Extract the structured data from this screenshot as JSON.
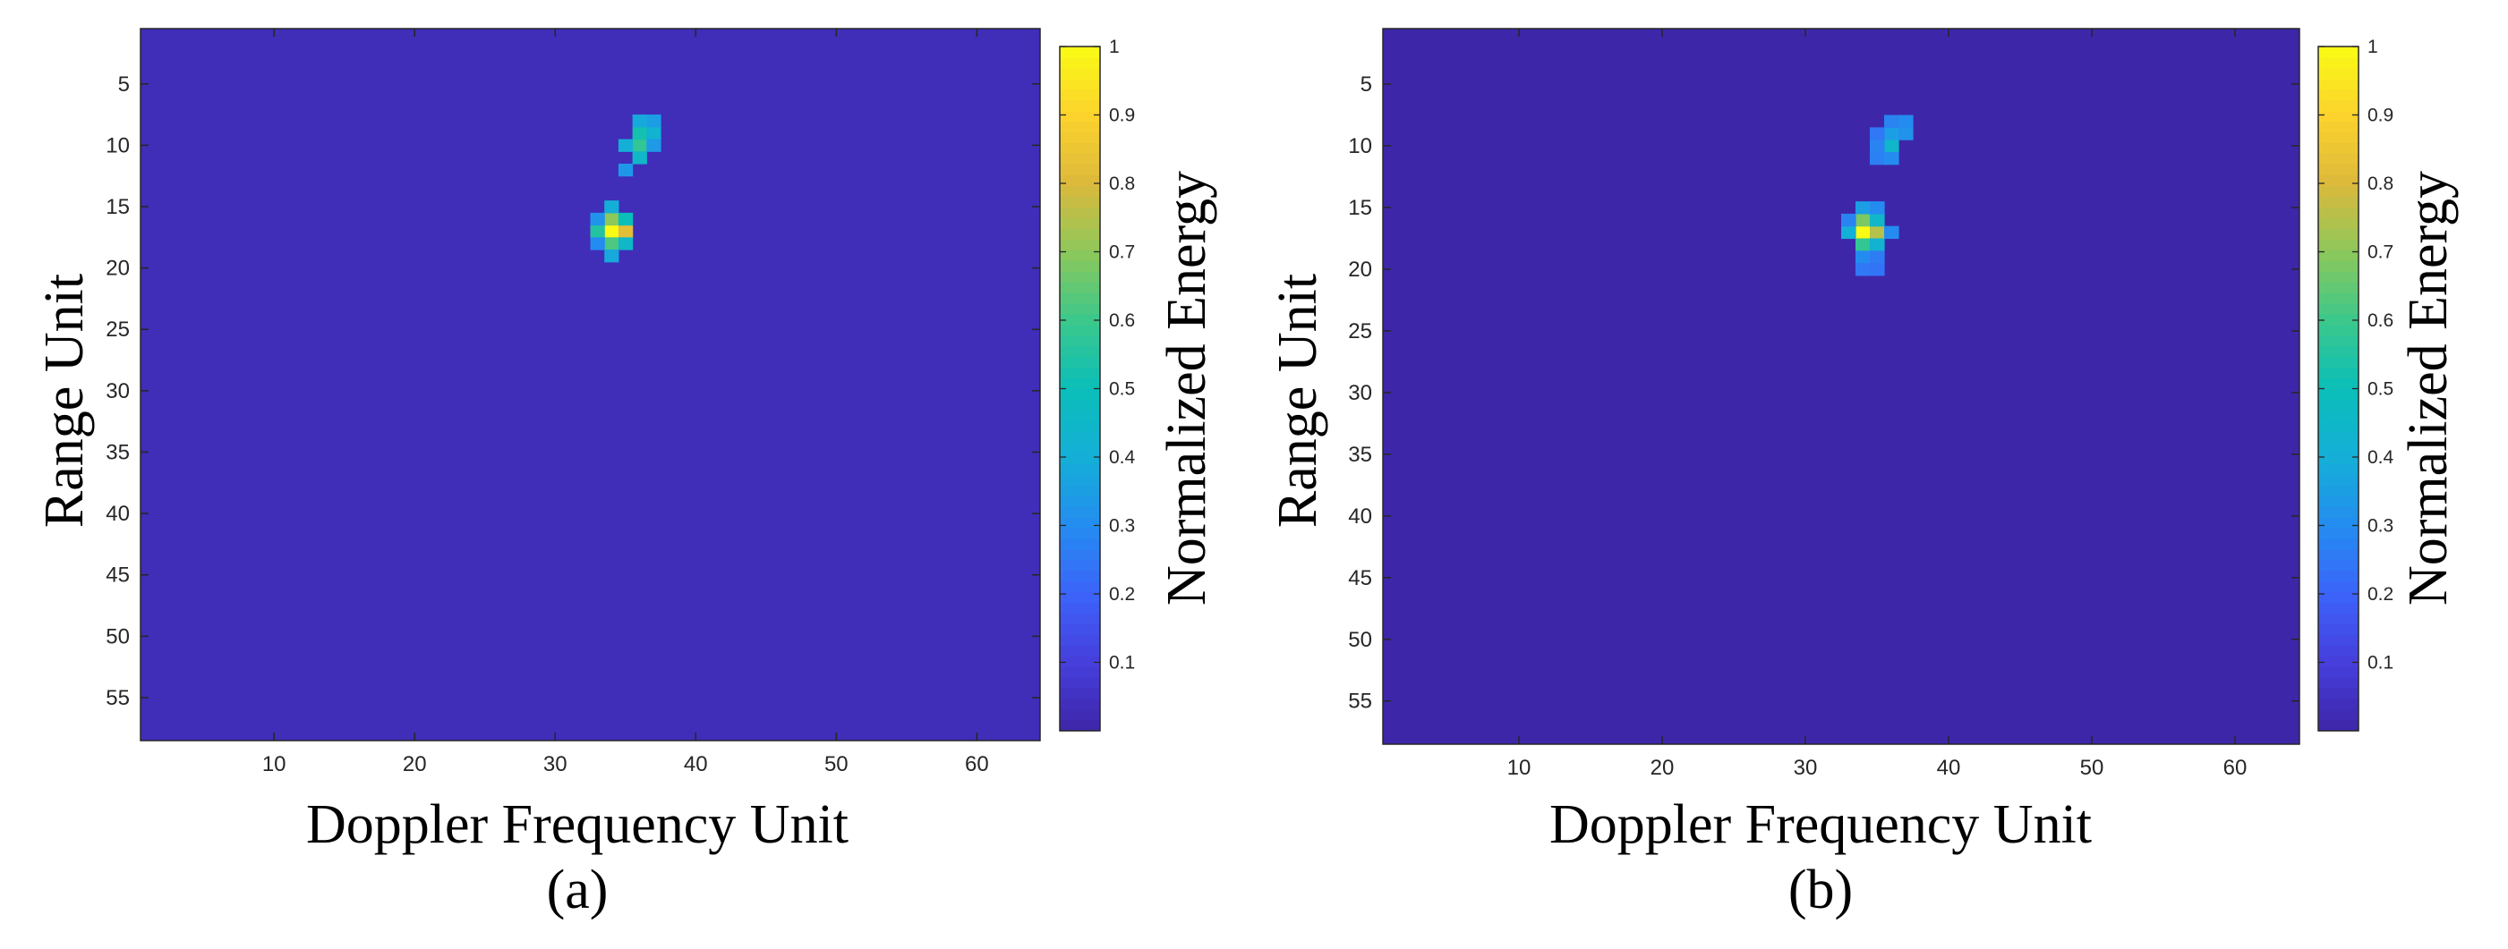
{
  "colors": {
    "background": "#3e26a8",
    "colormap": "parula"
  },
  "chart_data": [
    {
      "type": "heatmap",
      "caption": "(a)",
      "xlabel": "Doppler Frequency Unit",
      "ylabel": "Range Unit",
      "colorbar_label": "Normalized Energy",
      "xlim": [
        0.5,
        64.5
      ],
      "ylim": [
        0.5,
        58.5
      ],
      "y_reversed": true,
      "x_ticks": [
        10,
        20,
        30,
        40,
        50,
        60
      ],
      "y_ticks": [
        5,
        10,
        15,
        20,
        25,
        30,
        35,
        40,
        45,
        50,
        55
      ],
      "colorbar_range": [
        0,
        1
      ],
      "colorbar_ticks": [
        0.1,
        0.2,
        0.3,
        0.4,
        0.5,
        0.6,
        0.7,
        0.8,
        0.9,
        1
      ],
      "background_value": 0.03,
      "hotspots": [
        {
          "x": 34,
          "y": 17,
          "value": 1.0
        },
        {
          "x": 35,
          "y": 17,
          "value": 0.82
        },
        {
          "x": 33,
          "y": 17,
          "value": 0.55
        },
        {
          "x": 34,
          "y": 16,
          "value": 0.7
        },
        {
          "x": 34,
          "y": 18,
          "value": 0.62
        },
        {
          "x": 35,
          "y": 16,
          "value": 0.5
        },
        {
          "x": 34,
          "y": 15,
          "value": 0.4
        },
        {
          "x": 35,
          "y": 18,
          "value": 0.45
        },
        {
          "x": 34,
          "y": 19,
          "value": 0.38
        },
        {
          "x": 33,
          "y": 16,
          "value": 0.32
        },
        {
          "x": 33,
          "y": 18,
          "value": 0.3
        },
        {
          "x": 36,
          "y": 10,
          "value": 0.58
        },
        {
          "x": 36,
          "y": 9,
          "value": 0.52
        },
        {
          "x": 37,
          "y": 9,
          "value": 0.42
        },
        {
          "x": 36,
          "y": 11,
          "value": 0.45
        },
        {
          "x": 35,
          "y": 10,
          "value": 0.4
        },
        {
          "x": 37,
          "y": 8,
          "value": 0.35
        },
        {
          "x": 36,
          "y": 8,
          "value": 0.38
        },
        {
          "x": 35,
          "y": 12,
          "value": 0.33
        },
        {
          "x": 37,
          "y": 10,
          "value": 0.34
        }
      ]
    },
    {
      "type": "heatmap",
      "caption": "(b)",
      "xlabel": "Doppler Frequency Unit",
      "ylabel": "Range Unit",
      "colorbar_label": "Normalized Energy",
      "xlim": [
        0.5,
        64.5
      ],
      "ylim": [
        0.5,
        58.5
      ],
      "y_reversed": true,
      "x_ticks": [
        10,
        20,
        30,
        40,
        50,
        60
      ],
      "y_ticks": [
        5,
        10,
        15,
        20,
        25,
        30,
        35,
        40,
        45,
        50,
        55
      ],
      "colorbar_range": [
        0,
        1
      ],
      "colorbar_ticks": [
        0.1,
        0.2,
        0.3,
        0.4,
        0.5,
        0.6,
        0.7,
        0.8,
        0.9,
        1
      ],
      "background_value": 0.0,
      "hotspots": [
        {
          "x": 34,
          "y": 17,
          "value": 1.0
        },
        {
          "x": 35,
          "y": 17,
          "value": 0.75
        },
        {
          "x": 34,
          "y": 16,
          "value": 0.68
        },
        {
          "x": 34,
          "y": 18,
          "value": 0.58
        },
        {
          "x": 33,
          "y": 17,
          "value": 0.4
        },
        {
          "x": 35,
          "y": 16,
          "value": 0.45
        },
        {
          "x": 34,
          "y": 15,
          "value": 0.35
        },
        {
          "x": 35,
          "y": 15,
          "value": 0.3
        },
        {
          "x": 33,
          "y": 16,
          "value": 0.28
        },
        {
          "x": 36,
          "y": 17,
          "value": 0.3
        },
        {
          "x": 35,
          "y": 18,
          "value": 0.42
        },
        {
          "x": 34,
          "y": 19,
          "value": 0.3
        },
        {
          "x": 35,
          "y": 19,
          "value": 0.26
        },
        {
          "x": 34,
          "y": 20,
          "value": 0.25
        },
        {
          "x": 35,
          "y": 20,
          "value": 0.24
        },
        {
          "x": 36,
          "y": 10,
          "value": 0.45
        },
        {
          "x": 36,
          "y": 9,
          "value": 0.35
        },
        {
          "x": 37,
          "y": 8,
          "value": 0.3
        },
        {
          "x": 37,
          "y": 9,
          "value": 0.32
        },
        {
          "x": 36,
          "y": 8,
          "value": 0.28
        },
        {
          "x": 35,
          "y": 9,
          "value": 0.25
        },
        {
          "x": 35,
          "y": 10,
          "value": 0.28
        },
        {
          "x": 35,
          "y": 11,
          "value": 0.27
        },
        {
          "x": 36,
          "y": 11,
          "value": 0.3
        }
      ]
    }
  ]
}
